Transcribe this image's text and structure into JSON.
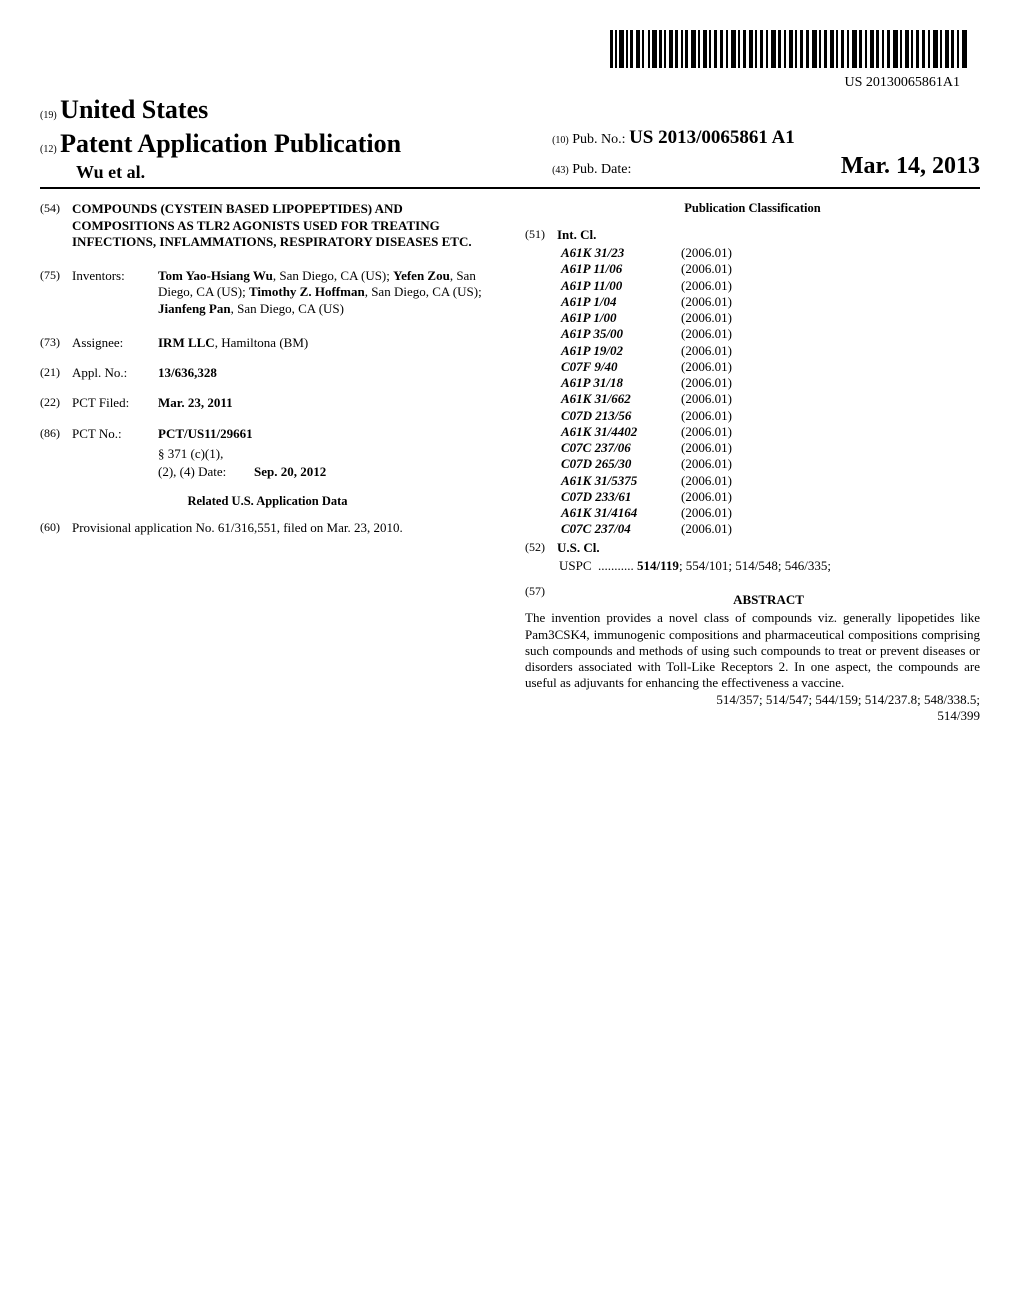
{
  "barcode_text": "US 20130065861A1",
  "header": {
    "country_code": "(19)",
    "country": "United States",
    "pub_type_code": "(12)",
    "pub_type": "Patent Application Publication",
    "authors": "Wu et al.",
    "pub_no_code": "(10)",
    "pub_no_label": "Pub. No.:",
    "pub_no": "US 2013/0065861 A1",
    "pub_date_code": "(43)",
    "pub_date_label": "Pub. Date:",
    "pub_date": "Mar. 14, 2013"
  },
  "title": {
    "inid": "(54)",
    "text": "COMPOUNDS (CYSTEIN BASED LIPOPEPTIDES) AND COMPOSITIONS AS TLR2 AGONISTS USED FOR TREATING INFECTIONS, INFLAMMATIONS, RESPIRATORY DISEASES ETC."
  },
  "inventors": {
    "inid": "(75)",
    "label": "Inventors:",
    "text": "Tom Yao-Hsiang Wu, San Diego, CA (US); Yefen Zou, San Diego, CA (US); Timothy Z. Hoffman, San Diego, CA (US); Jianfeng Pan, San Diego, CA (US)"
  },
  "assignee": {
    "inid": "(73)",
    "label": "Assignee:",
    "text": "IRM LLC, Hamiltona (BM)"
  },
  "appl_no": {
    "inid": "(21)",
    "label": "Appl. No.:",
    "text": "13/636,328"
  },
  "pct_filed": {
    "inid": "(22)",
    "label": "PCT Filed:",
    "text": "Mar. 23, 2011"
  },
  "pct_no": {
    "inid": "(86)",
    "label": "PCT No.:",
    "text": "PCT/US11/29661",
    "sub1_label": "§ 371 (c)(1),",
    "sub2_label": "(2), (4) Date:",
    "sub2_value": "Sep. 20, 2012"
  },
  "related": {
    "heading": "Related U.S. Application Data",
    "inid": "(60)",
    "text": "Provisional application No. 61/316,551, filed on Mar. 23, 2010."
  },
  "classification": {
    "heading": "Publication Classification",
    "intcl_inid": "(51)",
    "intcl_label": "Int. Cl.",
    "intcl": [
      {
        "code": "A61K 31/23",
        "year": "(2006.01)"
      },
      {
        "code": "A61P 11/06",
        "year": "(2006.01)"
      },
      {
        "code": "A61P 11/00",
        "year": "(2006.01)"
      },
      {
        "code": "A61P 1/04",
        "year": "(2006.01)"
      },
      {
        "code": "A61P 1/00",
        "year": "(2006.01)"
      },
      {
        "code": "A61P 35/00",
        "year": "(2006.01)"
      },
      {
        "code": "A61P 19/02",
        "year": "(2006.01)"
      },
      {
        "code": "C07F 9/40",
        "year": "(2006.01)"
      },
      {
        "code": "A61P 31/18",
        "year": "(2006.01)"
      },
      {
        "code": "A61K 31/662",
        "year": "(2006.01)"
      },
      {
        "code": "C07D 213/56",
        "year": "(2006.01)"
      },
      {
        "code": "A61K 31/4402",
        "year": "(2006.01)"
      },
      {
        "code": "C07C 237/06",
        "year": "(2006.01)"
      },
      {
        "code": "C07D 265/30",
        "year": "(2006.01)"
      },
      {
        "code": "A61K 31/5375",
        "year": "(2006.01)"
      },
      {
        "code": "C07D 233/61",
        "year": "(2006.01)"
      },
      {
        "code": "A61K 31/4164",
        "year": "(2006.01)"
      },
      {
        "code": "C07C 237/04",
        "year": "(2006.01)"
      }
    ],
    "uscl_inid": "(52)",
    "uscl_label": "U.S. Cl.",
    "uspc_label": "USPC",
    "uspc_lead": "514/119",
    "uspc_rest": "; 554/101; 514/548; 546/335; 514/357; 514/547; 544/159; 514/237.8; 548/338.5; 514/399"
  },
  "abstract": {
    "inid": "(57)",
    "heading": "ABSTRACT",
    "text": "The invention provides a novel class of compounds viz. generally lipopetides like Pam3CSK4, immunogenic compositions and pharmaceutical compositions comprising such compounds and methods of using such compounds to treat or prevent diseases or disorders associated with Toll-Like Receptors 2. In one aspect, the compounds are useful as adjuvants for enhancing the effectiveness a vaccine."
  }
}
